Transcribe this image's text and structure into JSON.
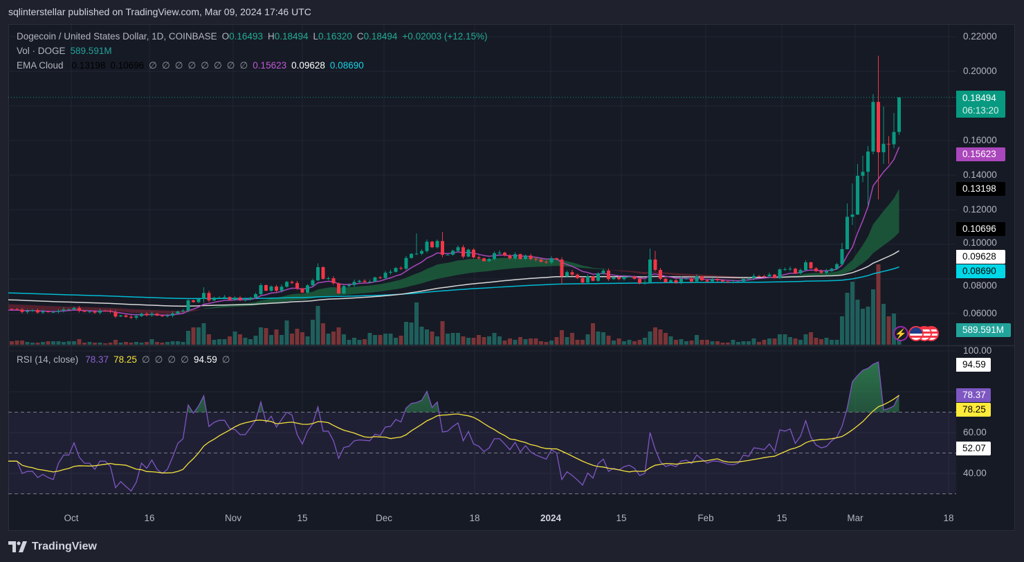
{
  "publisher_line": "sqlinterstellar published on TradingView.com, Mar 09, 2024 17:46 UTC",
  "legend": {
    "symbol": "Dogecoin / United States Dollar, 1D, COINBASE",
    "o_label": "O",
    "o": "0.16493",
    "h_label": "H",
    "h": "0.18494",
    "l_label": "L",
    "l": "0.16320",
    "c_label": "C",
    "c": "0.18494",
    "change": "+0.02003 (+12.15%)",
    "vol_label": "Vol · DOGE",
    "vol": "589.591M",
    "ema_label": "EMA Cloud",
    "ema_values": [
      "0.13198",
      "0.10696",
      "∅",
      "∅",
      "∅",
      "∅",
      "∅",
      "∅",
      "∅",
      "∅",
      "0.15623",
      "0.09628",
      "0.08690"
    ],
    "rsi_label": "RSI (14, close)",
    "rsi_values": [
      "78.37",
      "78.25",
      "∅",
      "∅",
      "∅",
      "∅",
      "94.59",
      "∅"
    ]
  },
  "price_axis": {
    "ticks": [
      "0.22000",
      "0.20000",
      "0.16000",
      "0.14000",
      "0.12000",
      "0.10000",
      "0.08000",
      "0.06000"
    ],
    "last_price": "0.18494",
    "countdown": "06:13:20",
    "ema_fast_tag": "0.15623",
    "cloud_top_tag": "0.13198",
    "cloud_bottom_tag": "0.10696",
    "ema_white_tag": "0.09628",
    "ema_cyan_tag": "0.08690",
    "volume_tag": "589.591M"
  },
  "rsi_axis": {
    "ticks": [
      "100.00",
      "60.00",
      "40.00"
    ],
    "max_tag": "94.59",
    "rsi_tag": "78.37",
    "ma_tag": "78.25",
    "mid_tag": "52.07"
  },
  "time_axis": [
    "Oct",
    "16",
    "Nov",
    "15",
    "Dec",
    "18",
    "2024",
    "15",
    "Feb",
    "15",
    "Mar",
    "18"
  ],
  "footer_brand": "TradingView",
  "colors": {
    "up": "#089981",
    "down": "#f23645",
    "vol_up": "#1f5f5b",
    "vol_down": "#7a3437",
    "ema_fast": "#ab47bc",
    "cloud_up": "#1c5a3b",
    "cloud_down": "#5a2230",
    "ema_white": "#d8d8d8",
    "ema_cyan": "#00bcd4",
    "rsi": "#7e57c2",
    "rsi_ma": "#f5e33b"
  },
  "chart_data": [
    {
      "type": "candlestick",
      "title": "Dogecoin / United States Dollar, 1D, COINBASE",
      "x_range": [
        "2023-09-20",
        "2024-03-09"
      ],
      "ylim": [
        0.05,
        0.225
      ],
      "first_open": 0.0626,
      "close": [
        0.0625,
        0.0623,
        0.0609,
        0.0614,
        0.062,
        0.0606,
        0.0612,
        0.0608,
        0.0609,
        0.0616,
        0.0623,
        0.0624,
        0.0632,
        0.0615,
        0.061,
        0.0611,
        0.0605,
        0.0616,
        0.0615,
        0.061,
        0.0583,
        0.0589,
        0.0581,
        0.0576,
        0.0585,
        0.0599,
        0.059,
        0.0599,
        0.0588,
        0.0585,
        0.0588,
        0.06,
        0.0612,
        0.0617,
        0.0676,
        0.0666,
        0.0684,
        0.0719,
        0.0676,
        0.0692,
        0.0692,
        0.0695,
        0.0679,
        0.0692,
        0.0679,
        0.068,
        0.0692,
        0.0712,
        0.0764,
        0.0732,
        0.0756,
        0.0732,
        0.0755,
        0.0783,
        0.0777,
        0.0745,
        0.0721,
        0.0763,
        0.0792,
        0.0868,
        0.0801,
        0.0804,
        0.0775,
        0.0716,
        0.0759,
        0.0765,
        0.0783,
        0.0789,
        0.0783,
        0.0784,
        0.0809,
        0.0805,
        0.0836,
        0.0841,
        0.0863,
        0.0859,
        0.0921,
        0.0945,
        0.0946,
        0.0961,
        0.1015,
        0.0983,
        0.1019,
        0.0939,
        0.094,
        0.0963,
        0.0983,
        0.0929,
        0.0969,
        0.0925,
        0.0919,
        0.0903,
        0.0915,
        0.0949,
        0.0952,
        0.0935,
        0.0919,
        0.0943,
        0.0915,
        0.0935,
        0.0915,
        0.0912,
        0.0899,
        0.0895,
        0.0919,
        0.0912,
        0.0815,
        0.0839,
        0.0825,
        0.0805,
        0.0779,
        0.0815,
        0.0789,
        0.0832,
        0.0848,
        0.0799,
        0.0808,
        0.0799,
        0.0812,
        0.0813,
        0.0801,
        0.0776,
        0.0781,
        0.0912,
        0.0852,
        0.0801,
        0.0781,
        0.0792,
        0.0779,
        0.0801,
        0.0802,
        0.0785,
        0.0815,
        0.0792,
        0.0785,
        0.0799,
        0.0792,
        0.0785,
        0.0783,
        0.0784,
        0.0785,
        0.0801,
        0.0803,
        0.0817,
        0.0816,
        0.0815,
        0.0825,
        0.0805,
        0.0855,
        0.0856,
        0.0859,
        0.0832,
        0.0852,
        0.0896,
        0.0861,
        0.0845,
        0.0836,
        0.0845,
        0.0859,
        0.0885,
        0.0972,
        0.1159,
        0.1172,
        0.1396,
        0.1419,
        0.1536,
        0.1823,
        0.1532,
        0.1581,
        0.1578,
        0.16493,
        0.18494
      ],
      "high_low_overrides": {
        "37": [
          0.0752,
          0.0662
        ],
        "59": [
          0.089,
          0.0788
        ],
        "78": [
          0.1063,
          0.0938
        ],
        "83": [
          0.1072,
          0.0925
        ],
        "106": [
          0.0925,
          0.077
        ],
        "123": [
          0.0975,
          0.0775
        ],
        "124": [
          0.0962,
          0.0845
        ],
        "160": [
          0.1008,
          0.088
        ],
        "161": [
          0.1236,
          0.097
        ],
        "162": [
          0.1352,
          0.1112
        ],
        "163": [
          0.1465,
          0.117
        ],
        "164": [
          0.1512,
          0.1359
        ],
        "165": [
          0.1568,
          0.1225
        ],
        "166": [
          0.1868,
          0.152
        ],
        "167": [
          0.209,
          0.1259
        ],
        "168": [
          0.1796,
          0.1465
        ],
        "169": [
          0.1625,
          0.1465
        ],
        "170": [
          0.1759,
          0.1555
        ],
        "171": [
          0.18494,
          0.1632
        ]
      },
      "volume_millions": [
        150,
        180,
        180,
        120,
        90,
        90,
        120,
        150,
        150,
        150,
        120,
        150,
        150,
        240,
        90,
        120,
        90,
        90,
        60,
        90,
        210,
        90,
        120,
        90,
        120,
        90,
        120,
        240,
        120,
        90,
        120,
        150,
        150,
        120,
        600,
        750,
        750,
        930,
        450,
        210,
        240,
        240,
        360,
        570,
        450,
        300,
        240,
        390,
        750,
        720,
        420,
        660,
        420,
        1050,
        480,
        690,
        540,
        360,
        1080,
        1680,
        930,
        480,
        570,
        750,
        450,
        210,
        300,
        210,
        240,
        510,
        420,
        420,
        480,
        480,
        300,
        390,
        990,
        960,
        1830,
        780,
        660,
        570,
        360,
        1020,
        480,
        510,
        510,
        360,
        300,
        300,
        420,
        330,
        360,
        510,
        360,
        180,
        270,
        210,
        330,
        240,
        270,
        270,
        150,
        120,
        180,
        330,
        630,
        330,
        510,
        210,
        210,
        450,
        930,
        570,
        540,
        390,
        180,
        270,
        150,
        210,
        150,
        210,
        300,
        570,
        750,
        660,
        510,
        360,
        210,
        240,
        150,
        180,
        420,
        210,
        210,
        150,
        150,
        90,
        90,
        210,
        120,
        150,
        150,
        270,
        120,
        210,
        270,
        270,
        450,
        450,
        330,
        270,
        210,
        450,
        540,
        300,
        240,
        300,
        210,
        210,
        1230,
        2250,
        2730,
        1950,
        1560,
        1650,
        2400,
        3480,
        1770,
        1230,
        1350,
        589.591
      ],
      "ema_periods": {
        "fast": 9,
        "cloud_fast": 21,
        "cloud_slow": 50,
        "white": 100,
        "cyan": 200
      },
      "ema_seed": {
        "fast": 0.0618,
        "cloud_fast": 0.0625,
        "cloud_slow": 0.0655,
        "white": 0.068,
        "cyan": 0.072
      },
      "last_values": {
        "ema_fast": 0.15623,
        "cloud_top": 0.13198,
        "cloud_bottom": 0.10696,
        "ema_white": 0.09628,
        "ema_cyan": 0.0869
      }
    },
    {
      "type": "line",
      "title": "RSI (14, close)",
      "ylim": [
        25,
        100
      ],
      "bands": [
        30,
        50,
        70
      ],
      "ma_length": 14,
      "rsi": [
        46,
        46,
        40,
        41,
        41,
        38,
        39.5,
        38,
        37,
        45,
        49,
        49,
        55,
        48,
        45,
        45,
        42,
        46,
        46,
        43.5,
        33,
        36,
        33.6,
        31.4,
        35.7,
        45,
        42.5,
        46.5,
        42,
        40,
        42,
        48,
        54.7,
        57,
        73.5,
        69.5,
        73,
        78,
        63,
        65,
        66,
        66,
        62,
        61.5,
        59,
        59,
        62.4,
        66,
        75,
        65,
        68,
        62.7,
        66.4,
        70,
        68.6,
        59,
        54.4,
        60.7,
        64.3,
        72.6,
        60.7,
        60.7,
        56,
        47.4,
        52.7,
        53.3,
        56,
        56.4,
        56.2,
        56,
        59.2,
        58.6,
        62.7,
        63,
        66.4,
        65.2,
        72,
        74.3,
        74.7,
        75.8,
        80.2,
        72.3,
        75,
        60.3,
        60.7,
        63,
        64.7,
        56,
        60.5,
        54.4,
        53.3,
        50.7,
        52.5,
        57,
        57,
        54.4,
        51.6,
        55.2,
        50.5,
        53.6,
        50.5,
        49,
        48,
        47,
        51.6,
        50,
        37,
        40.8,
        39,
        36.8,
        34.3,
        40.2,
        37.7,
        44.8,
        47,
        41,
        42.5,
        41.6,
        43.3,
        44,
        42.5,
        39,
        40,
        60,
        51.8,
        45.7,
        43.4,
        44.2,
        43.3,
        46,
        46.5,
        44.8,
        49,
        47,
        45,
        46,
        46,
        45.3,
        44.5,
        44.2,
        45,
        49,
        48.4,
        52.5,
        52.2,
        51.6,
        54.4,
        50.8,
        61.3,
        60.7,
        61.8,
        54.7,
        58.2,
        65.8,
        57.8,
        53.9,
        52.5,
        53.2,
        56,
        57.8,
        63,
        72,
        85,
        88,
        90.5,
        91.5,
        93.5,
        94.59,
        71,
        71.8,
        73,
        78.37
      ],
      "last_values": {
        "rsi": 78.37,
        "rsi_ma": 78.25,
        "max": 94.59,
        "mid": 52.07
      }
    }
  ]
}
